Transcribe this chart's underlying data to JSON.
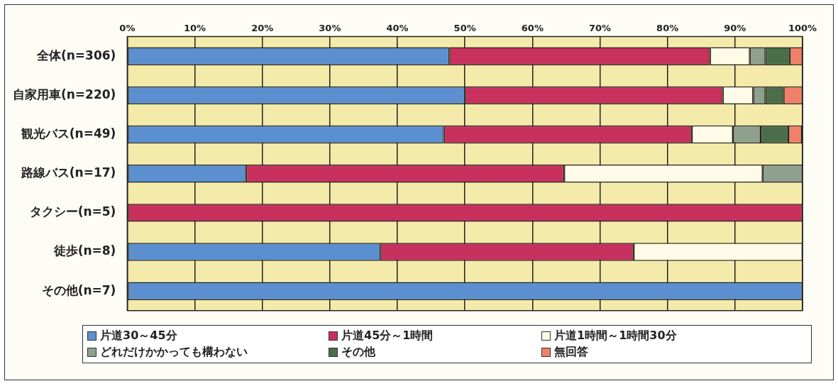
{
  "chart_data": {
    "type": "bar",
    "orientation": "horizontal",
    "stacked": true,
    "categories": [
      "全体(n=306)",
      "自家用車(n=220)",
      "観光バス(n=49)",
      "路線バス(n=17)",
      "タクシー(n=5)",
      "徒歩(n=8)",
      "その他(n=7)"
    ],
    "series": [
      {
        "name": "片道30～45分",
        "color": "#5b8fd0",
        "values": [
          47.7,
          50.0,
          46.9,
          17.6,
          0,
          37.5,
          100
        ]
      },
      {
        "name": "片道45分～1時間",
        "color": "#c8305e",
        "values": [
          38.6,
          38.2,
          36.7,
          47.1,
          100,
          37.5,
          0
        ]
      },
      {
        "name": "片道1時間～1時間30分",
        "color": "#fffbe8",
        "values": [
          5.9,
          4.5,
          6.1,
          29.4,
          0,
          25.0,
          0
        ]
      },
      {
        "name": "どれだけかかっても構わない",
        "color": "#8fa08f",
        "values": [
          2.3,
          1.8,
          4.1,
          5.9,
          0,
          0,
          0
        ]
      },
      {
        "name": "その他",
        "color": "#4a6e4a",
        "values": [
          3.6,
          2.7,
          4.1,
          0,
          0,
          0,
          0
        ]
      },
      {
        "name": "無回答",
        "color": "#f0806a",
        "values": [
          1.9,
          2.8,
          2.0,
          0,
          0,
          0,
          0
        ]
      }
    ],
    "xlim": [
      0,
      100
    ],
    "xticks": [
      {
        "value": 0,
        "label": "0%"
      },
      {
        "value": 10,
        "label": "10%"
      },
      {
        "value": 20,
        "label": "20%"
      },
      {
        "value": 30,
        "label": "30%"
      },
      {
        "value": 40,
        "label": "40%"
      },
      {
        "value": 50,
        "label": "50%"
      },
      {
        "value": 60,
        "label": "60%"
      },
      {
        "value": 70,
        "label": "70%"
      },
      {
        "value": 80,
        "label": "80%"
      },
      {
        "value": 90,
        "label": "90%"
      },
      {
        "value": 100,
        "label": "100%"
      }
    ],
    "grid": "x",
    "legend": "bottom"
  }
}
